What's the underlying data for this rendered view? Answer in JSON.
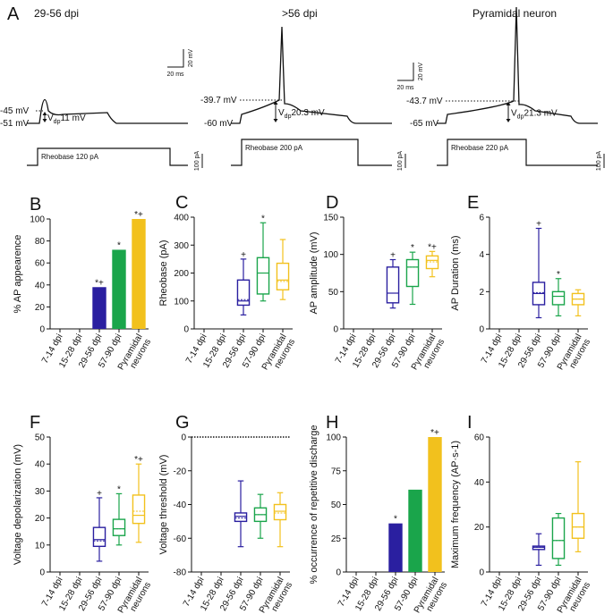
{
  "figure_label": "A",
  "traces": [
    {
      "title": "29-56 dpi",
      "threshold_label": "-45 mV",
      "rest_label": "-51 mV",
      "vdp_main": "V",
      "vdp_sub": "dp",
      "vdp_value": "11 mV",
      "rheobase": "Rheobase 120 pA",
      "spike": "small"
    },
    {
      "title": ">56 dpi",
      "threshold_label": "-39.7 mV",
      "rest_label": "-60 mV",
      "vdp_main": "V",
      "vdp_sub": "dp",
      "vdp_value": "20.3 mV",
      "rheobase": "Rheobase 200 pA",
      "spike": "full"
    },
    {
      "title": "Pyramidal neuron",
      "threshold_label": "-43.7 mV",
      "rest_label": "-65 mV",
      "vdp_main": "V",
      "vdp_sub": "dp",
      "vdp_value": "21.3 mV",
      "rheobase": "Rheobase 220 pA",
      "spike": "full"
    }
  ],
  "scalebars": {
    "voltage": "20 mV",
    "time": "20 ms",
    "current": "100 pA"
  },
  "colors": {
    "purple": "#2a1fa0",
    "green": "#1aa54b",
    "yellow": "#f2c11d",
    "black": "#111111"
  },
  "chart_data": [
    {
      "label": "B",
      "type": "bar",
      "ylabel": "% AP appearence",
      "ylim": [
        0,
        100
      ],
      "yticks": [
        0,
        20,
        40,
        60,
        80,
        100
      ],
      "categories": [
        "7-14 dpi",
        "15-28 dpi",
        "29-56 dpi",
        "57-90 dpi",
        "Pyramidal neurons"
      ],
      "values": [
        0,
        0,
        38,
        72,
        100
      ],
      "annotations": [
        "",
        "",
        "*+",
        "*",
        "*+"
      ]
    },
    {
      "label": "C",
      "type": "box",
      "ylabel": "Rheobase (pA)",
      "ylim": [
        0,
        400
      ],
      "yticks": [
        0,
        100,
        200,
        300,
        400
      ],
      "categories": [
        "7-14 dpi",
        "15-28 dpi",
        "29-56 dpi",
        "57-90 dpi",
        "Pyramidal neurons"
      ],
      "boxes": [
        null,
        null,
        {
          "min": 50,
          "q1": 85,
          "median": 100,
          "mean": 105,
          "q3": 175,
          "max": 250
        },
        {
          "min": 100,
          "q1": 125,
          "median": 200,
          "mean": 200,
          "q3": 255,
          "max": 380
        },
        {
          "min": 105,
          "q1": 140,
          "median": 175,
          "mean": 170,
          "q3": 235,
          "max": 320
        }
      ],
      "annotations": [
        "",
        "",
        "+",
        "*",
        ""
      ]
    },
    {
      "label": "D",
      "type": "box",
      "ylabel": "AP amplitude (mV)",
      "ylim": [
        0,
        150
      ],
      "yticks": [
        0,
        50,
        100,
        150
      ],
      "categories": [
        "7-14 dpi",
        "15-28 dpi",
        "29-56 dpi",
        "57-90 dpi",
        "Pyramidal neurons"
      ],
      "boxes": [
        null,
        null,
        {
          "min": 28,
          "q1": 35,
          "median": 48,
          "mean": 48,
          "q3": 83,
          "max": 93
        },
        {
          "min": 33,
          "q1": 57,
          "median": 83,
          "mean": 83,
          "q3": 93,
          "max": 103
        },
        {
          "min": 70,
          "q1": 81,
          "median": 92,
          "mean": 90,
          "q3": 98,
          "max": 104
        }
      ],
      "annotations": [
        "",
        "",
        "+",
        "*",
        "*+"
      ]
    },
    {
      "label": "E",
      "type": "box",
      "ylabel": "AP Duration (ms)",
      "ylim": [
        0,
        6
      ],
      "yticks": [
        0,
        2,
        4,
        6
      ],
      "categories": [
        "7-14 dpi",
        "15-28 dpi",
        "29-56 dpi",
        "57-90 dpi",
        "Pyramidal neurons"
      ],
      "boxes": [
        null,
        null,
        {
          "min": 0.6,
          "q1": 1.3,
          "median": 1.9,
          "mean": 1.95,
          "q3": 2.5,
          "max": 5.4
        },
        {
          "min": 0.7,
          "q1": 1.3,
          "median": 1.75,
          "mean": 1.75,
          "q3": 2.0,
          "max": 2.7
        },
        {
          "min": 0.7,
          "q1": 1.3,
          "median": 1.6,
          "mean": 1.6,
          "q3": 1.9,
          "max": 2.1
        }
      ],
      "annotations": [
        "",
        "",
        "+",
        "*",
        ""
      ]
    },
    {
      "label": "F",
      "type": "box",
      "ylabel": "Voltage depolarization (mV)",
      "ylim": [
        0,
        50
      ],
      "yticks": [
        0,
        10,
        20,
        30,
        40,
        50
      ],
      "categories": [
        "7-14 dpi",
        "15-28 dpi",
        "29-56 dpi",
        "57-90 dpi",
        "Pyramidal neurons"
      ],
      "boxes": [
        null,
        null,
        {
          "min": 4,
          "q1": 9.5,
          "median": 12,
          "mean": 11.5,
          "q3": 16.5,
          "max": 27.5
        },
        {
          "min": 10,
          "q1": 13.5,
          "median": 16,
          "mean": 16,
          "q3": 19.5,
          "max": 29
        },
        {
          "min": 11,
          "q1": 18,
          "median": 21,
          "mean": 22.5,
          "q3": 28.5,
          "max": 40
        }
      ],
      "annotations": [
        "",
        "",
        "+",
        "*",
        "*+"
      ]
    },
    {
      "label": "G",
      "type": "box",
      "ylabel": "Voltage threshold (mV)",
      "ylim": [
        -80,
        0
      ],
      "yticks": [
        -80,
        -60,
        -40,
        -20,
        0
      ],
      "categories": [
        "7-14 dpi",
        "15-28 dpi",
        "29-56 dpi",
        "57-90 dpi",
        "Pyramidal neurons"
      ],
      "boxes": [
        null,
        null,
        {
          "min": -65,
          "q1": -50,
          "median": -47,
          "mean": -48,
          "q3": -45,
          "max": -26
        },
        {
          "min": -60,
          "q1": -50,
          "median": -46,
          "mean": -46,
          "q3": -42,
          "max": -34
        },
        {
          "min": -65,
          "q1": -49,
          "median": -44,
          "mean": -45,
          "q3": -40,
          "max": -33
        }
      ],
      "annotations": [
        "",
        "",
        "",
        "",
        ""
      ]
    },
    {
      "label": "H",
      "type": "bar",
      "ylabel": "% occurrence of repetitive discharge",
      "ylim": [
        0,
        100
      ],
      "yticks": [
        0,
        25,
        50,
        75,
        100
      ],
      "categories": [
        "7-14 dpi",
        "15-28 dpi",
        "29-56 dpi",
        "57-90 dpi",
        "Pyramidal neurons"
      ],
      "values": [
        0,
        0,
        36,
        61,
        100
      ],
      "annotations": [
        "",
        "",
        "*",
        "",
        "*+"
      ]
    },
    {
      "label": "I",
      "type": "box",
      "ylabel": "Maximum frequency (AP·s-1)",
      "ylim": [
        0,
        60
      ],
      "yticks": [
        0,
        20,
        40,
        60
      ],
      "categories": [
        "7-14 dpi",
        "15-28 dpi",
        "29-56 dpi",
        "57-90 dpi",
        "Pyramidal neurons"
      ],
      "boxes": [
        null,
        null,
        {
          "min": 3,
          "q1": 10,
          "median": 11,
          "mean": 11,
          "q3": 11.5,
          "max": 17
        },
        {
          "min": 3,
          "q1": 6,
          "median": 14,
          "mean": 14,
          "q3": 24,
          "max": 26
        },
        {
          "min": 9,
          "q1": 15,
          "median": 20,
          "mean": 20,
          "q3": 26,
          "max": 49
        }
      ],
      "annotations": [
        "",
        "",
        "",
        "",
        ""
      ]
    }
  ]
}
